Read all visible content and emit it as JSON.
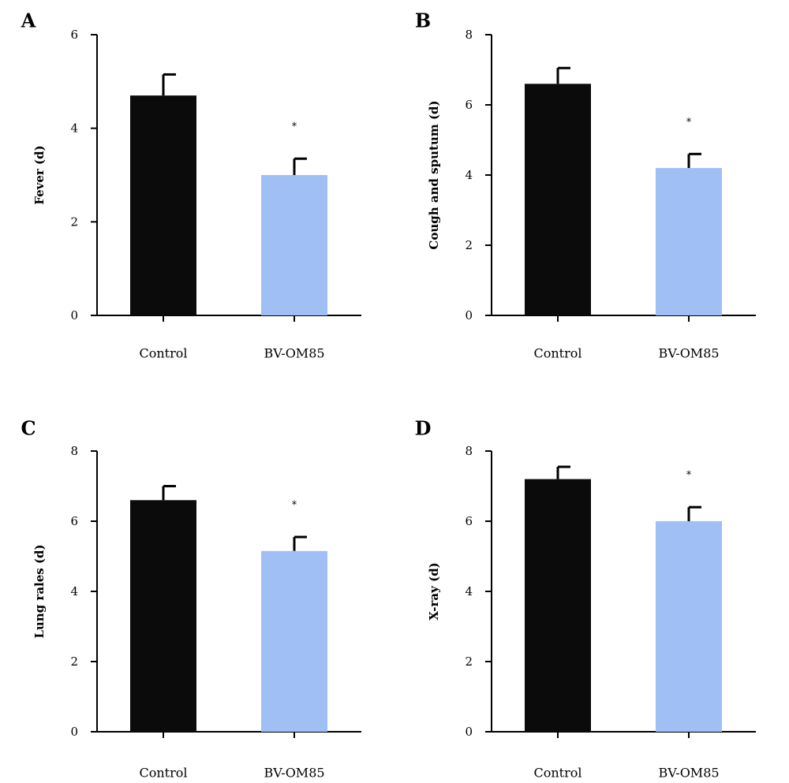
{
  "chart_data": [
    {
      "type": "bar",
      "panel": "A",
      "categories": [
        "Control",
        "BV-OM85"
      ],
      "values": [
        4.7,
        3.0
      ],
      "errors": [
        0.45,
        0.35
      ],
      "significance": [
        "",
        "*"
      ],
      "colors": [
        "#0b0b0b",
        "#9fbff5"
      ],
      "ylabel": "Fever (d)",
      "ylim": [
        0,
        6
      ],
      "yticks": [
        0,
        2,
        4,
        6
      ],
      "grid": false
    },
    {
      "type": "bar",
      "panel": "B",
      "categories": [
        "Control",
        "BV-OM85"
      ],
      "values": [
        6.6,
        4.2
      ],
      "errors": [
        0.45,
        0.4
      ],
      "significance": [
        "",
        "*"
      ],
      "colors": [
        "#0b0b0b",
        "#9fbff5"
      ],
      "ylabel": "Cough and sputum (d)",
      "ylim": [
        0,
        8
      ],
      "yticks": [
        0,
        2,
        4,
        6,
        8
      ],
      "grid": false
    },
    {
      "type": "bar",
      "panel": "C",
      "categories": [
        "Control",
        "BV-OM85"
      ],
      "values": [
        6.6,
        5.15
      ],
      "errors": [
        0.4,
        0.4
      ],
      "significance": [
        "",
        "*"
      ],
      "colors": [
        "#0b0b0b",
        "#9fbff5"
      ],
      "ylabel": "Lung rales (d)",
      "ylim": [
        0,
        8
      ],
      "yticks": [
        0,
        2,
        4,
        6,
        8
      ],
      "grid": false
    },
    {
      "type": "bar",
      "panel": "D",
      "categories": [
        "Control",
        "BV-OM85"
      ],
      "values": [
        7.2,
        6.0
      ],
      "errors": [
        0.35,
        0.4
      ],
      "significance": [
        "",
        "*"
      ],
      "colors": [
        "#0b0b0b",
        "#9fbff5"
      ],
      "ylabel": "X-ray (d)",
      "ylim": [
        0,
        8
      ],
      "yticks": [
        0,
        2,
        4,
        6,
        8
      ],
      "grid": false
    }
  ]
}
